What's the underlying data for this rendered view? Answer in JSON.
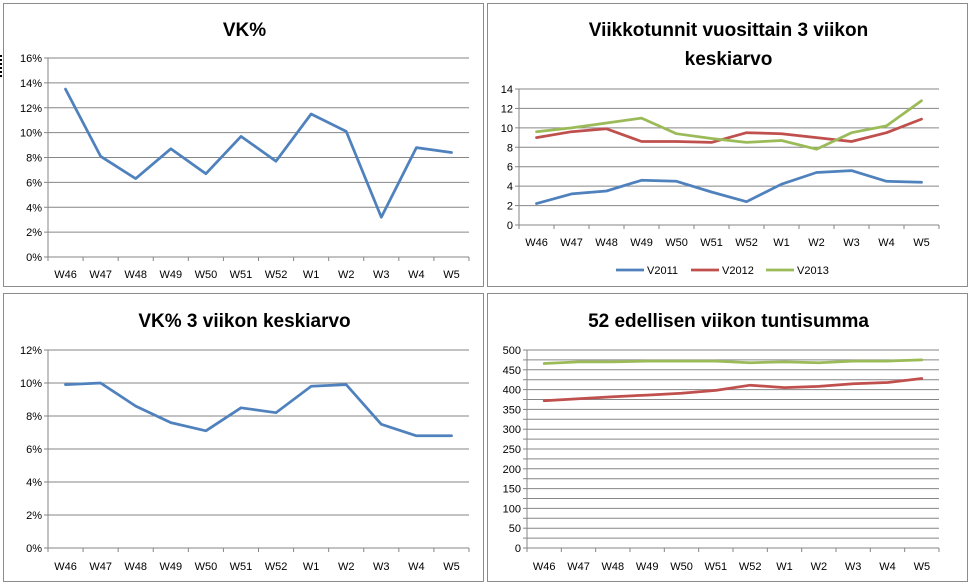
{
  "chart_data": [
    {
      "type": "line",
      "title": "VK%",
      "title_lines": [
        "VK%"
      ],
      "categories": [
        "W46",
        "W47",
        "W48",
        "W49",
        "W50",
        "W51",
        "W52",
        "W1",
        "W2",
        "W3",
        "W4",
        "W5"
      ],
      "series": [
        {
          "color": "#4f81bd",
          "values": [
            0.135,
            0.081,
            0.063,
            0.087,
            0.067,
            0.097,
            0.077,
            0.115,
            0.101,
            0.032,
            0.088,
            0.084
          ]
        }
      ],
      "ylim": [
        0,
        0.16
      ],
      "yticks": [
        0,
        0.02,
        0.04,
        0.06,
        0.08,
        0.1,
        0.12,
        0.14,
        0.16
      ],
      "ytick_labels": [
        "0%",
        "2%",
        "4%",
        "6%",
        "8%",
        "10%",
        "12%",
        "14%",
        "16%"
      ],
      "grid": true,
      "legend": "none"
    },
    {
      "type": "line",
      "title": "Viikkotunnit vuosittain 3 viikon keskiarvo",
      "title_lines": [
        "Viikkotunnit vuosittain 3 viikon",
        "keskiarvo"
      ],
      "categories": [
        "W46",
        "W47",
        "W48",
        "W49",
        "W50",
        "W51",
        "W52",
        "W1",
        "W2",
        "W3",
        "W4",
        "W5"
      ],
      "series": [
        {
          "name": "V2011",
          "color": "#4f81bd",
          "values": [
            2.2,
            3.2,
            3.5,
            4.6,
            4.5,
            3.4,
            2.4,
            4.2,
            5.4,
            5.6,
            4.5,
            4.4
          ]
        },
        {
          "name": "V2012",
          "color": "#c0504d",
          "values": [
            9.0,
            9.6,
            9.9,
            8.6,
            8.6,
            8.5,
            9.5,
            9.4,
            9.0,
            8.6,
            9.5,
            10.9
          ]
        },
        {
          "name": "V2013",
          "color": "#9bbb59",
          "values": [
            9.6,
            10.0,
            10.5,
            11.0,
            9.4,
            8.9,
            8.5,
            8.7,
            7.8,
            9.5,
            10.2,
            12.8
          ]
        }
      ],
      "ylim": [
        0,
        14
      ],
      "yticks": [
        0,
        2,
        4,
        6,
        8,
        10,
        12,
        14
      ],
      "ytick_labels": [
        "0",
        "2",
        "4",
        "6",
        "8",
        "10",
        "12",
        "14"
      ],
      "grid": true,
      "legend": "bottom"
    },
    {
      "type": "line",
      "title": "VK% 3 viikon keskiarvo",
      "title_lines": [
        "VK% 3 viikon keskiarvo"
      ],
      "categories": [
        "W46",
        "W47",
        "W48",
        "W49",
        "W50",
        "W51",
        "W52",
        "W1",
        "W2",
        "W3",
        "W4",
        "W5"
      ],
      "series": [
        {
          "color": "#4f81bd",
          "values": [
            0.099,
            0.1,
            0.086,
            0.076,
            0.071,
            0.085,
            0.082,
            0.098,
            0.099,
            0.075,
            0.068,
            0.068
          ]
        }
      ],
      "ylim": [
        0,
        0.12
      ],
      "yticks": [
        0,
        0.02,
        0.04,
        0.06,
        0.08,
        0.1,
        0.12
      ],
      "ytick_labels": [
        "0%",
        "2%",
        "4%",
        "6%",
        "8%",
        "10%",
        "12%"
      ],
      "grid": true,
      "legend": "none"
    },
    {
      "type": "line",
      "title": "52 edellisen viikon tuntisumma",
      "title_lines": [
        "52 edellisen viikon tuntisumma"
      ],
      "categories": [
        "W46",
        "W47",
        "W48",
        "W49",
        "W50",
        "W51",
        "W52",
        "W1",
        "W2",
        "W3",
        "W4",
        "W5"
      ],
      "series": [
        {
          "color": "#c0504d",
          "values": [
            372,
            377,
            382,
            386,
            391,
            398,
            411,
            405,
            408,
            415,
            418,
            428
          ]
        },
        {
          "color": "#9bbb59",
          "values": [
            466,
            470,
            470,
            472,
            472,
            472,
            468,
            470,
            468,
            472,
            472,
            475
          ]
        }
      ],
      "ylim": [
        0,
        500
      ],
      "yticks": [
        0,
        25,
        50,
        75,
        100,
        125,
        150,
        175,
        200,
        225,
        250,
        275,
        300,
        325,
        350,
        375,
        400,
        425,
        450,
        475,
        500
      ],
      "ytick_labels": [
        "0",
        "",
        "50",
        "",
        "100",
        "",
        "150",
        "",
        "200",
        "",
        "250",
        "",
        "300",
        "",
        "350",
        "",
        "400",
        "",
        "450",
        "",
        "500"
      ],
      "grid": true,
      "legend": "none"
    }
  ]
}
